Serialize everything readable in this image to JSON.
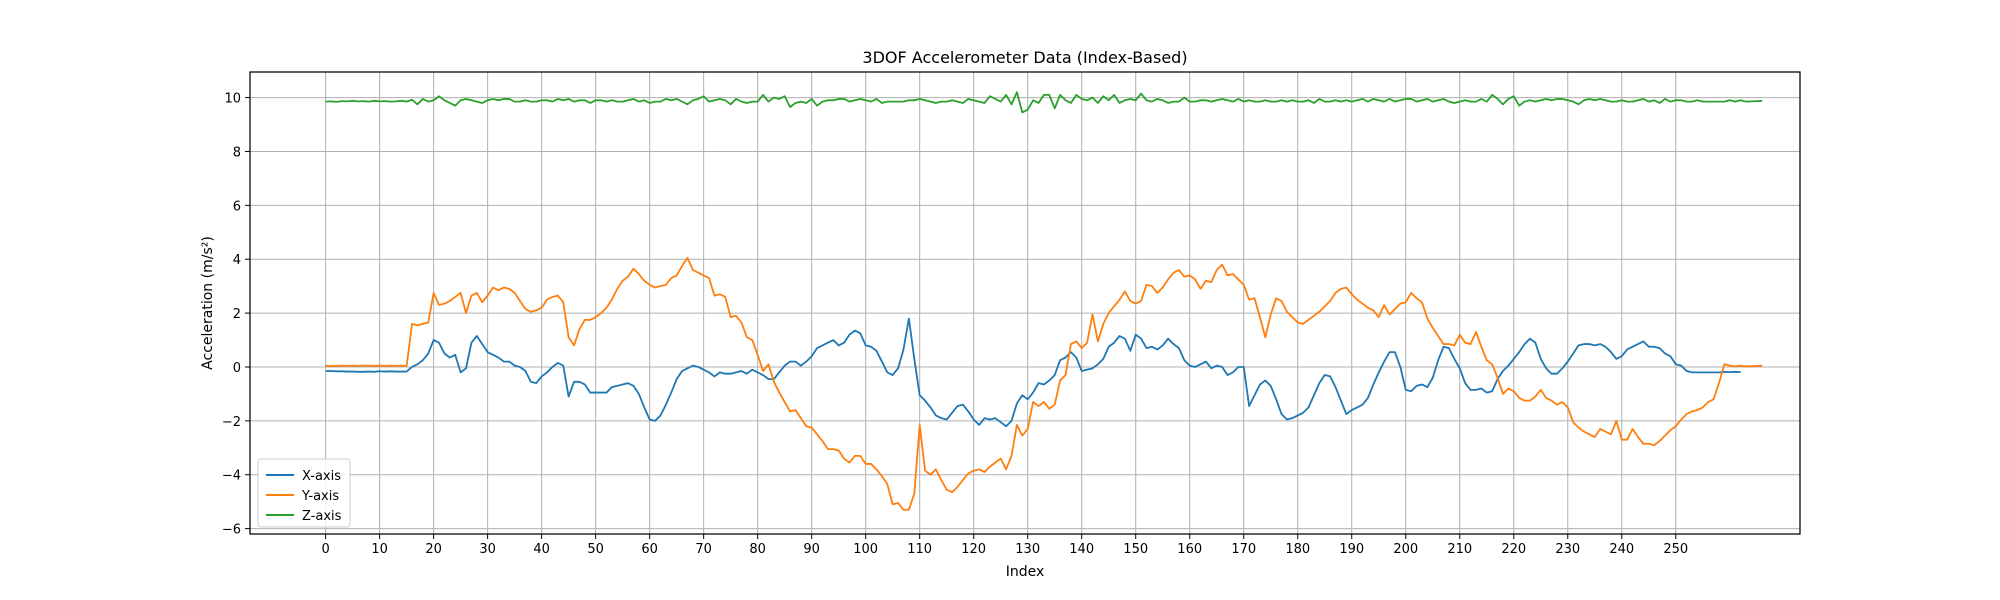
{
  "chart_data": {
    "type": "line",
    "title": "3DOF Accelerometer Data (Index-Based)",
    "xlabel": "Index",
    "ylabel": "Acceleration (m/s²)",
    "xlim": [
      -14,
      273
    ],
    "ylim": [
      -6.2,
      10.95
    ],
    "xticks": [
      0,
      10,
      20,
      30,
      40,
      50,
      60,
      70,
      80,
      90,
      100,
      110,
      120,
      130,
      140,
      150,
      160,
      170,
      180,
      190,
      200,
      210,
      220,
      230,
      240,
      250
    ],
    "yticks": [
      -6,
      -4,
      -2,
      0,
      2,
      4,
      6,
      8,
      10
    ],
    "grid": true,
    "legend_position": "lower-left",
    "x_start": 0,
    "x_step": 1,
    "series": [
      {
        "name": "X-axis",
        "color": "#1f77b4",
        "values": [
          -0.15,
          -0.15,
          -0.16,
          -0.16,
          -0.17,
          -0.17,
          -0.18,
          -0.18,
          -0.17,
          -0.18,
          -0.16,
          -0.17,
          -0.16,
          -0.17,
          -0.17,
          -0.17,
          0.0,
          0.1,
          0.25,
          0.5,
          1.0,
          0.9,
          0.5,
          0.35,
          0.45,
          -0.2,
          -0.05,
          0.9,
          1.15,
          0.85,
          0.55,
          0.45,
          0.35,
          0.2,
          0.2,
          0.05,
          0.0,
          -0.15,
          -0.55,
          -0.6,
          -0.35,
          -0.2,
          0.0,
          0.15,
          0.05,
          -1.1,
          -0.55,
          -0.55,
          -0.65,
          -0.95,
          -0.95,
          -0.95,
          -0.95,
          -0.75,
          -0.7,
          -0.65,
          -0.6,
          -0.7,
          -1.0,
          -1.5,
          -1.95,
          -2.0,
          -1.8,
          -1.4,
          -0.95,
          -0.45,
          -0.15,
          -0.05,
          0.05,
          0.0,
          -0.1,
          -0.2,
          -0.35,
          -0.2,
          -0.25,
          -0.25,
          -0.2,
          -0.15,
          -0.25,
          -0.1,
          -0.2,
          -0.3,
          -0.45,
          -0.45,
          -0.2,
          0.05,
          0.2,
          0.2,
          0.05,
          0.2,
          0.4,
          0.7,
          0.8,
          0.9,
          1.0,
          0.8,
          0.9,
          1.2,
          1.35,
          1.25,
          0.8,
          0.75,
          0.6,
          0.2,
          -0.2,
          -0.3,
          -0.05,
          0.65,
          1.8,
          0.3,
          -1.05,
          -1.25,
          -1.5,
          -1.8,
          -1.9,
          -1.95,
          -1.7,
          -1.45,
          -1.4,
          -1.65,
          -1.95,
          -2.15,
          -1.9,
          -1.95,
          -1.9,
          -2.05,
          -2.2,
          -2.0,
          -1.35,
          -1.05,
          -1.2,
          -0.95,
          -0.6,
          -0.65,
          -0.5,
          -0.3,
          0.25,
          0.35,
          0.55,
          0.35,
          -0.15,
          -0.1,
          -0.05,
          0.1,
          0.3,
          0.75,
          0.9,
          1.15,
          1.05,
          0.6,
          1.2,
          1.05,
          0.7,
          0.75,
          0.65,
          0.8,
          1.05,
          0.85,
          0.7,
          0.25,
          0.05,
          0.0,
          0.1,
          0.2,
          -0.05,
          0.05,
          0.0,
          -0.3,
          -0.2,
          0.0,
          0.0,
          -1.45,
          -1.05,
          -0.65,
          -0.5,
          -0.7,
          -1.2,
          -1.75,
          -1.95,
          -1.9,
          -1.8,
          -1.7,
          -1.5,
          -1.05,
          -0.6,
          -0.3,
          -0.35,
          -0.75,
          -1.25,
          -1.75,
          -1.6,
          -1.5,
          -1.4,
          -1.15,
          -0.65,
          -0.2,
          0.2,
          0.55,
          0.55,
          0.0,
          -0.85,
          -0.9,
          -0.7,
          -0.65,
          -0.75,
          -0.4,
          0.25,
          0.75,
          0.7,
          0.3,
          -0.05,
          -0.6,
          -0.85,
          -0.85,
          -0.8,
          -0.95,
          -0.9,
          -0.45,
          -0.15,
          0.05,
          0.3,
          0.55,
          0.85,
          1.05,
          0.9,
          0.3,
          -0.05,
          -0.25,
          -0.25,
          -0.05,
          0.2,
          0.5,
          0.8,
          0.85,
          0.85,
          0.8,
          0.85,
          0.75,
          0.55,
          0.3,
          0.4,
          0.65,
          0.75,
          0.85,
          0.95,
          0.75,
          0.75,
          0.7,
          0.5,
          0.4,
          0.1,
          0.05,
          -0.15,
          -0.2,
          -0.2,
          -0.2,
          -0.2,
          -0.2,
          -0.2,
          -0.18,
          -0.19,
          -0.18,
          -0.19
        ]
      },
      {
        "name": "Y-axis",
        "color": "#ff7f0e",
        "values": [
          0.05,
          0.03,
          0.04,
          0.05,
          0.04,
          0.05,
          0.04,
          0.05,
          0.05,
          0.04,
          0.05,
          0.04,
          0.05,
          0.04,
          0.05,
          0.04,
          1.6,
          1.55,
          1.6,
          1.65,
          2.75,
          2.3,
          2.35,
          2.45,
          2.6,
          2.75,
          2.0,
          2.65,
          2.75,
          2.4,
          2.65,
          2.95,
          2.85,
          2.95,
          2.9,
          2.75,
          2.45,
          2.15,
          2.05,
          2.1,
          2.2,
          2.5,
          2.6,
          2.65,
          2.4,
          1.1,
          0.8,
          1.4,
          1.75,
          1.75,
          1.85,
          2.0,
          2.2,
          2.5,
          2.9,
          3.2,
          3.35,
          3.65,
          3.45,
          3.2,
          3.05,
          2.95,
          3.0,
          3.05,
          3.3,
          3.4,
          3.75,
          4.05,
          3.6,
          3.5,
          3.4,
          3.3,
          2.65,
          2.7,
          2.6,
          1.85,
          1.9,
          1.65,
          1.1,
          1.0,
          0.45,
          -0.15,
          0.1,
          -0.55,
          -0.95,
          -1.3,
          -1.65,
          -1.6,
          -1.9,
          -2.2,
          -2.25,
          -2.5,
          -2.75,
          -3.05,
          -3.05,
          -3.1,
          -3.4,
          -3.55,
          -3.3,
          -3.3,
          -3.6,
          -3.6,
          -3.8,
          -4.05,
          -4.35,
          -5.1,
          -5.05,
          -5.3,
          -5.3,
          -4.7,
          -2.15,
          -3.85,
          -4.0,
          -3.8,
          -4.2,
          -4.55,
          -4.65,
          -4.45,
          -4.2,
          -3.95,
          -3.85,
          -3.8,
          -3.9,
          -3.7,
          -3.55,
          -3.4,
          -3.8,
          -3.3,
          -2.15,
          -2.55,
          -2.3,
          -1.3,
          -1.45,
          -1.3,
          -1.55,
          -1.4,
          -0.5,
          -0.3,
          0.85,
          0.95,
          0.7,
          0.9,
          1.95,
          0.95,
          1.6,
          2.0,
          2.25,
          2.5,
          2.8,
          2.45,
          2.35,
          2.45,
          3.05,
          3.0,
          2.75,
          2.95,
          3.25,
          3.5,
          3.6,
          3.35,
          3.4,
          3.25,
          2.9,
          3.2,
          3.15,
          3.6,
          3.8,
          3.4,
          3.45,
          3.25,
          3.05,
          2.5,
          2.55,
          1.85,
          1.1,
          1.95,
          2.55,
          2.45,
          2.05,
          1.85,
          1.65,
          1.6,
          1.75,
          1.9,
          2.05,
          2.25,
          2.45,
          2.75,
          2.9,
          2.95,
          2.7,
          2.5,
          2.35,
          2.2,
          2.1,
          1.85,
          2.3,
          1.95,
          2.15,
          2.35,
          2.4,
          2.75,
          2.55,
          2.4,
          1.8,
          1.45,
          1.15,
          0.85,
          0.85,
          0.8,
          1.2,
          0.9,
          0.85,
          1.3,
          0.75,
          0.25,
          0.1,
          -0.4,
          -1.0,
          -0.8,
          -0.9,
          -1.15,
          -1.25,
          -1.25,
          -1.1,
          -0.85,
          -1.15,
          -1.25,
          -1.4,
          -1.3,
          -1.5,
          -2.05,
          -2.25,
          -2.4,
          -2.5,
          -2.6,
          -2.3,
          -2.4,
          -2.5,
          -2.0,
          -2.7,
          -2.7,
          -2.3,
          -2.6,
          -2.85,
          -2.85,
          -2.9,
          -2.75,
          -2.55,
          -2.35,
          -2.2,
          -1.95,
          -1.75,
          -1.65,
          -1.6,
          -1.5,
          -1.3,
          -1.2,
          -0.6,
          0.1,
          0.05,
          0.02,
          0.05,
          0.02,
          0.03,
          0.04,
          0.05
        ]
      },
      {
        "name": "Z-axis",
        "color": "#2ca02c",
        "values": [
          9.85,
          9.86,
          9.84,
          9.87,
          9.86,
          9.88,
          9.86,
          9.87,
          9.85,
          9.88,
          9.86,
          9.87,
          9.85,
          9.86,
          9.88,
          9.85,
          9.92,
          9.75,
          9.95,
          9.85,
          9.9,
          10.05,
          9.9,
          9.8,
          9.7,
          9.9,
          9.95,
          9.9,
          9.85,
          9.8,
          9.9,
          9.95,
          9.9,
          9.95,
          9.95,
          9.85,
          9.85,
          9.9,
          9.85,
          9.85,
          9.9,
          9.9,
          9.85,
          9.95,
          9.9,
          9.95,
          9.85,
          9.9,
          9.9,
          9.8,
          9.9,
          9.9,
          9.85,
          9.9,
          9.85,
          9.85,
          9.9,
          9.95,
          9.85,
          9.9,
          9.8,
          9.85,
          9.85,
          9.95,
          9.9,
          9.95,
          9.85,
          9.75,
          9.9,
          9.95,
          10.05,
          9.85,
          9.9,
          9.95,
          9.9,
          9.75,
          9.95,
          9.85,
          9.8,
          9.85,
          9.85,
          10.1,
          9.85,
          10.0,
          9.95,
          10.05,
          9.65,
          9.8,
          9.85,
          9.8,
          9.95,
          9.7,
          9.85,
          9.9,
          9.9,
          9.95,
          9.95,
          9.85,
          9.9,
          9.95,
          9.9,
          9.85,
          9.95,
          9.8,
          9.85,
          9.85,
          9.85,
          9.85,
          9.9,
          9.9,
          9.95,
          9.9,
          9.85,
          9.8,
          9.85,
          9.85,
          9.9,
          9.85,
          9.8,
          9.95,
          9.9,
          9.85,
          9.8,
          10.05,
          9.95,
          9.85,
          10.1,
          9.75,
          10.2,
          9.45,
          9.55,
          9.9,
          9.8,
          10.1,
          10.1,
          9.6,
          10.1,
          9.9,
          9.8,
          10.1,
          9.95,
          9.9,
          10.0,
          9.8,
          10.05,
          9.9,
          10.1,
          9.8,
          9.9,
          9.95,
          9.9,
          10.15,
          9.9,
          9.85,
          9.95,
          9.9,
          9.8,
          9.85,
          9.85,
          10.0,
          9.85,
          9.85,
          9.9,
          9.9,
          9.85,
          9.9,
          9.95,
          9.9,
          9.85,
          9.95,
          9.85,
          9.9,
          9.85,
          9.85,
          9.9,
          9.85,
          9.85,
          9.9,
          9.85,
          9.9,
          9.85,
          9.85,
          9.9,
          9.8,
          9.95,
          9.85,
          9.85,
          9.9,
          9.85,
          9.9,
          9.85,
          9.9,
          9.95,
          9.85,
          9.95,
          9.9,
          9.85,
          9.95,
          9.85,
          9.9,
          9.95,
          9.95,
          9.85,
          9.9,
          9.95,
          9.85,
          9.9,
          9.95,
          9.85,
          9.8,
          9.85,
          9.9,
          9.85,
          9.85,
          9.95,
          9.85,
          10.1,
          9.95,
          9.75,
          9.95,
          10.05,
          9.7,
          9.85,
          9.9,
          9.85,
          9.9,
          9.95,
          9.9,
          9.95,
          9.95,
          9.9,
          9.85,
          9.75,
          9.9,
          9.95,
          9.9,
          9.95,
          9.9,
          9.85,
          9.85,
          9.9,
          9.85,
          9.85,
          9.9,
          9.95,
          9.85,
          9.9,
          9.8,
          9.95,
          9.85,
          9.9,
          9.9,
          9.85,
          9.85,
          9.9,
          9.85,
          9.85,
          9.85,
          9.85,
          9.85,
          9.9,
          9.85,
          9.9,
          9.85,
          9.86,
          9.87,
          9.88
        ]
      }
    ]
  }
}
